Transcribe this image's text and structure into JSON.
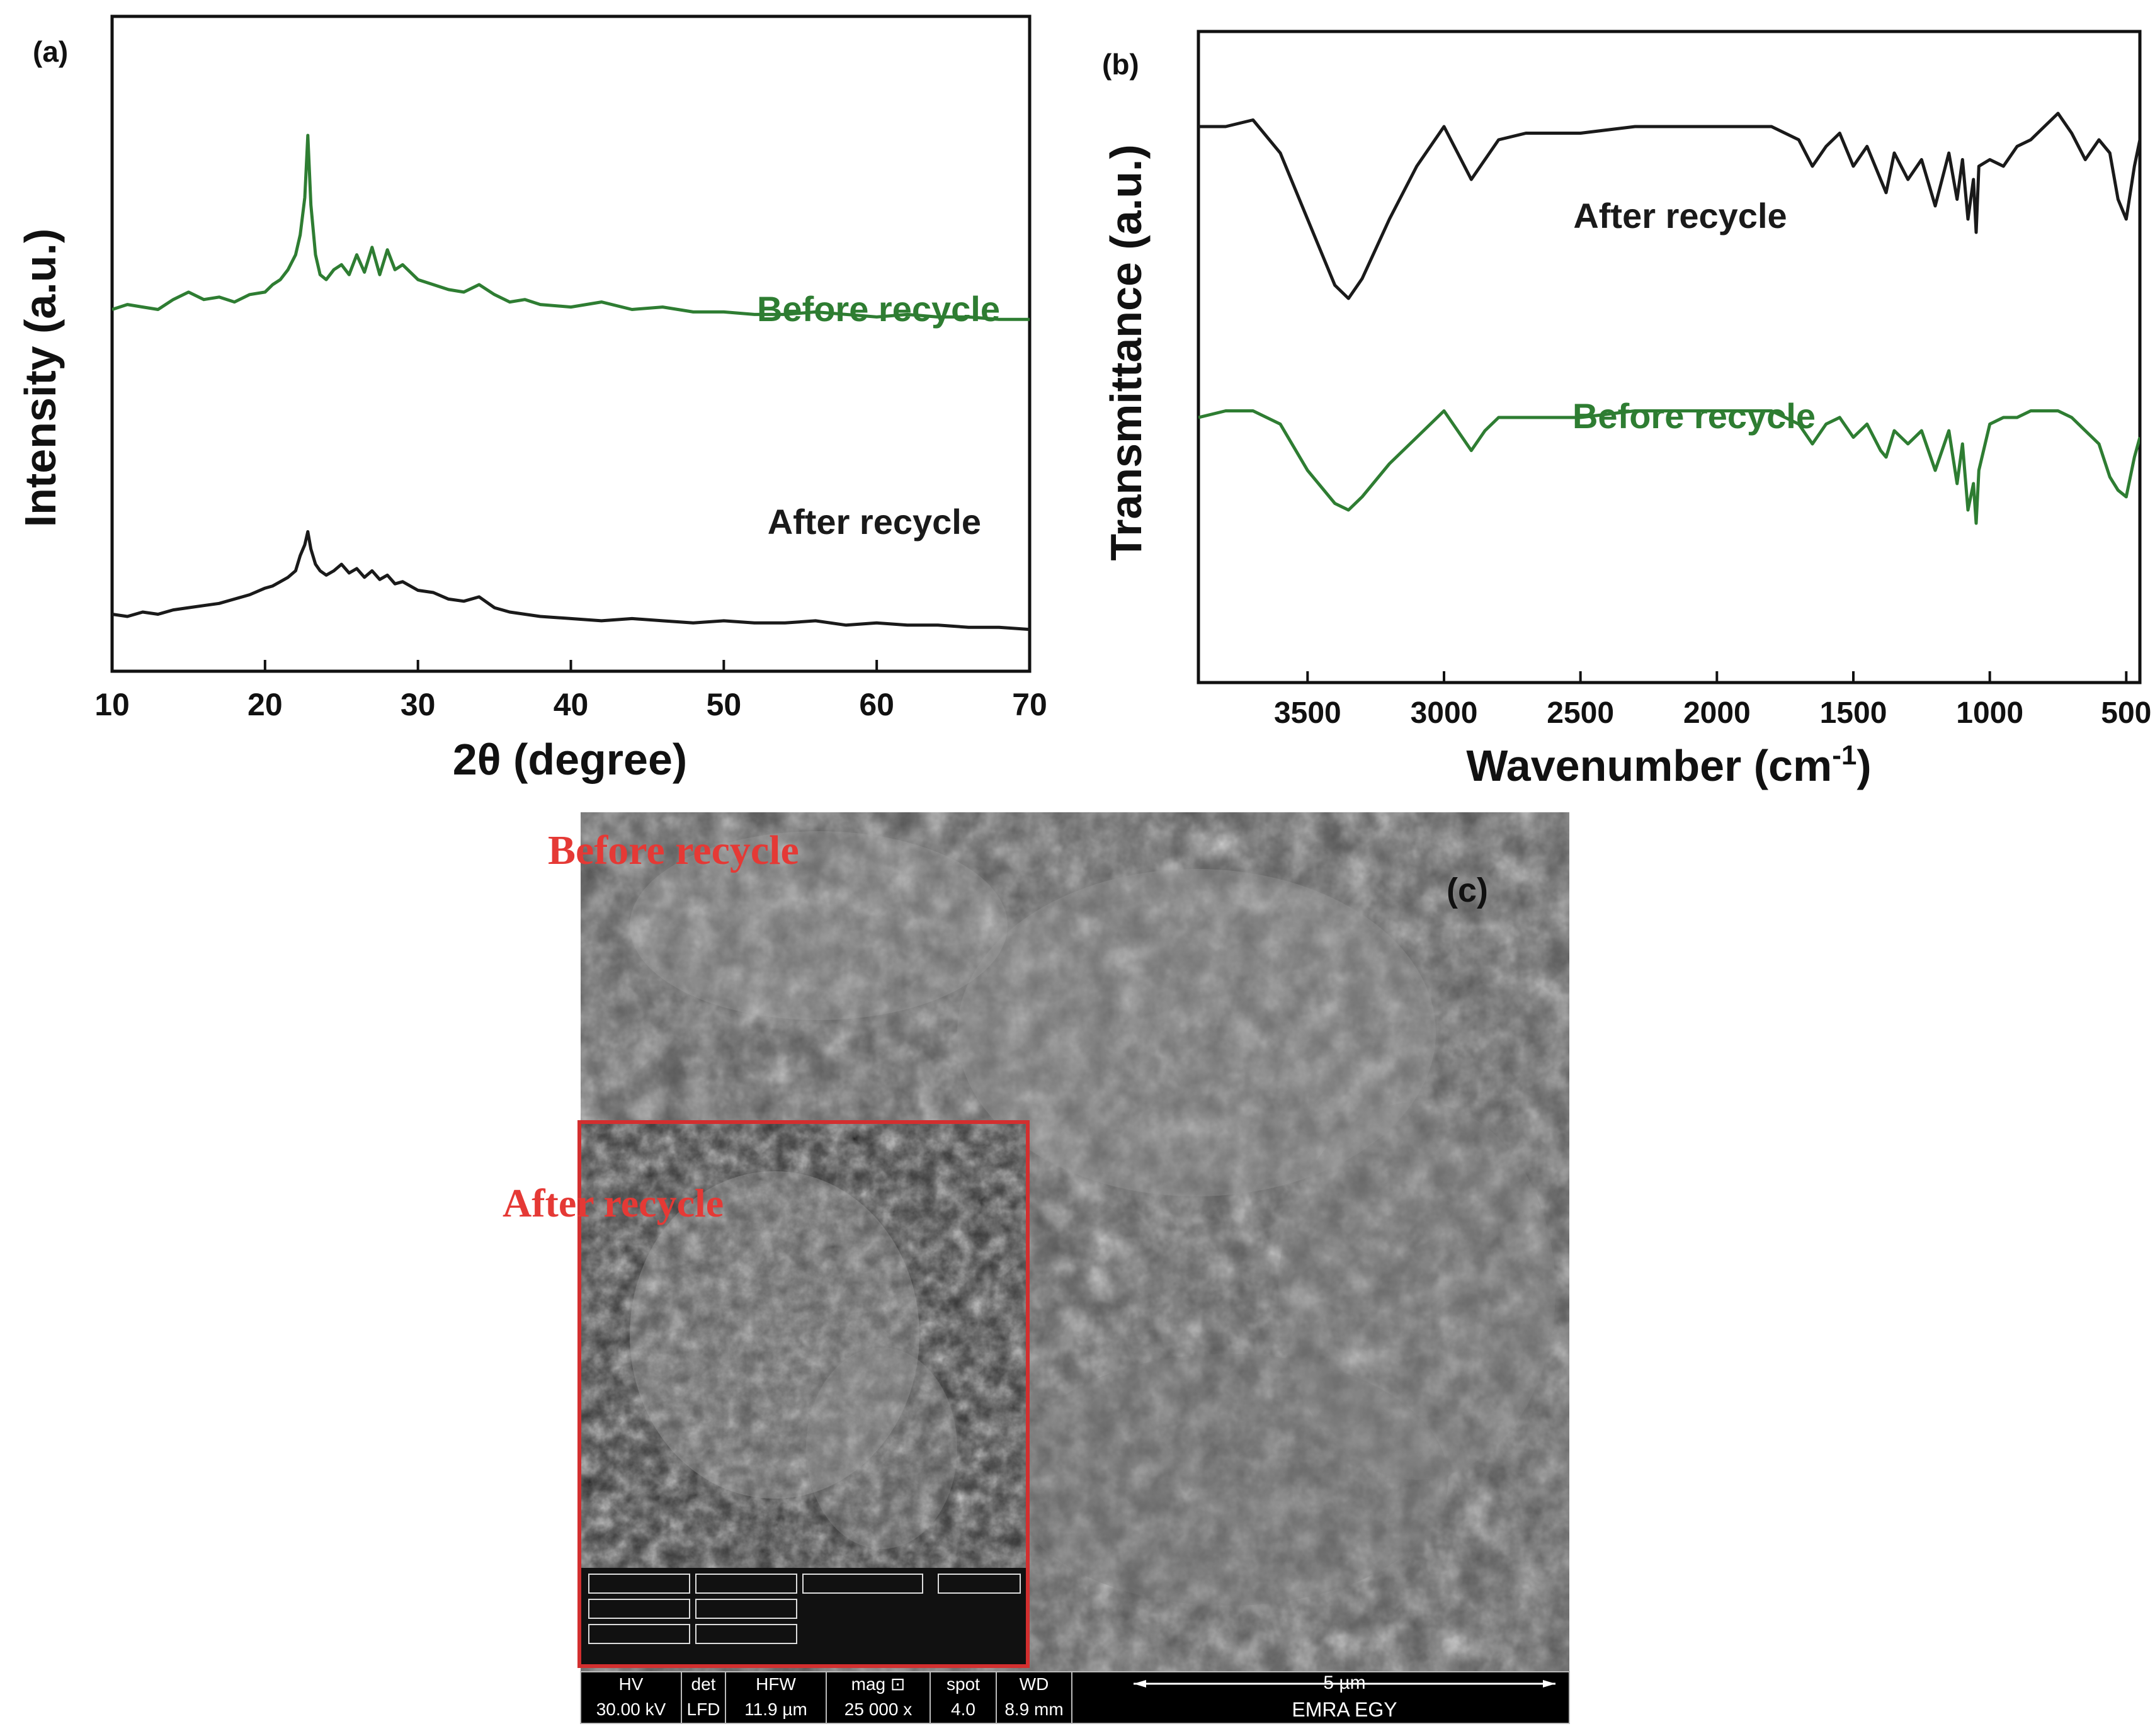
{
  "chart_data": [
    {
      "type": "line",
      "panel_label": "(a)",
      "xlabel": "2θ (degree)",
      "ylabel": "Intensity (a.u.)",
      "xlim": [
        10,
        70
      ],
      "xticks": [
        10,
        20,
        30,
        40,
        50,
        60,
        70
      ],
      "y_ticks_shown": false,
      "series": [
        {
          "name": "Before recycle",
          "color": "#2e7d32",
          "x": [
            10,
            11,
            12,
            13,
            14,
            15,
            16,
            17,
            18,
            19,
            20,
            20.5,
            21,
            21.5,
            22,
            22.3,
            22.6,
            22.8,
            23,
            23.3,
            23.6,
            24,
            24.5,
            25,
            25.5,
            26,
            26.5,
            27,
            27.5,
            28,
            28.5,
            29,
            30,
            31,
            32,
            33,
            34,
            35,
            36,
            37,
            38,
            40,
            42,
            44,
            46,
            48,
            50,
            52,
            54,
            56,
            58,
            60,
            62,
            64,
            66,
            68,
            70
          ],
          "y": [
            0.3,
            0.32,
            0.31,
            0.3,
            0.34,
            0.37,
            0.34,
            0.35,
            0.33,
            0.36,
            0.37,
            0.4,
            0.42,
            0.46,
            0.52,
            0.6,
            0.75,
            1.0,
            0.72,
            0.52,
            0.44,
            0.42,
            0.46,
            0.48,
            0.44,
            0.52,
            0.45,
            0.55,
            0.44,
            0.54,
            0.46,
            0.48,
            0.42,
            0.4,
            0.38,
            0.37,
            0.4,
            0.36,
            0.33,
            0.34,
            0.32,
            0.31,
            0.33,
            0.3,
            0.31,
            0.29,
            0.29,
            0.28,
            0.28,
            0.29,
            0.28,
            0.27,
            0.28,
            0.27,
            0.27,
            0.26,
            0.26
          ]
        },
        {
          "name": "After recycle",
          "color": "#1a1a1a",
          "x": [
            10,
            11,
            12,
            13,
            14,
            15,
            16,
            17,
            18,
            19,
            20,
            20.5,
            21,
            21.5,
            22,
            22.3,
            22.6,
            22.8,
            23,
            23.3,
            23.6,
            24,
            24.5,
            25,
            25.5,
            26,
            26.5,
            27,
            27.5,
            28,
            28.5,
            29,
            30,
            31,
            32,
            33,
            34,
            35,
            36,
            37,
            38,
            40,
            42,
            44,
            46,
            48,
            50,
            52,
            54,
            56,
            58,
            60,
            62,
            64,
            66,
            68,
            70
          ],
          "y": [
            0.1,
            0.09,
            0.11,
            0.1,
            0.12,
            0.13,
            0.14,
            0.15,
            0.17,
            0.19,
            0.22,
            0.23,
            0.25,
            0.27,
            0.3,
            0.37,
            0.42,
            0.48,
            0.4,
            0.33,
            0.3,
            0.28,
            0.3,
            0.33,
            0.29,
            0.31,
            0.27,
            0.3,
            0.26,
            0.28,
            0.24,
            0.25,
            0.21,
            0.2,
            0.17,
            0.16,
            0.18,
            0.13,
            0.11,
            0.1,
            0.09,
            0.08,
            0.07,
            0.08,
            0.07,
            0.06,
            0.07,
            0.06,
            0.06,
            0.07,
            0.05,
            0.06,
            0.05,
            0.05,
            0.04,
            0.04,
            0.03
          ]
        }
      ],
      "annotations": [
        "Before recycle",
        "After recycle"
      ]
    },
    {
      "type": "line",
      "panel_label": "(b)",
      "xlabel": "Wavenumber (cm",
      "xlabel_superscript": "-1",
      "xlabel_suffix": ")",
      "ylabel": "Transmittance (a.u.)",
      "xlim": [
        3900,
        450
      ],
      "x_reversed": true,
      "xticks": [
        3500,
        3000,
        2500,
        2000,
        1500,
        1000,
        500
      ],
      "y_ticks_shown": false,
      "series": [
        {
          "name": "After recycle",
          "color": "#1a1a1a",
          "x": [
            3900,
            3800,
            3700,
            3600,
            3500,
            3400,
            3350,
            3300,
            3200,
            3100,
            3000,
            2950,
            2900,
            2850,
            2800,
            2700,
            2500,
            2300,
            2100,
            1900,
            1800,
            1700,
            1650,
            1600,
            1550,
            1500,
            1450,
            1400,
            1380,
            1350,
            1300,
            1250,
            1200,
            1150,
            1120,
            1100,
            1080,
            1060,
            1050,
            1040,
            1000,
            950,
            900,
            850,
            800,
            750,
            700,
            650,
            600,
            560,
            530,
            500,
            470,
            450
          ],
          "y": [
            0.78,
            0.78,
            0.79,
            0.74,
            0.64,
            0.54,
            0.52,
            0.55,
            0.64,
            0.72,
            0.78,
            0.74,
            0.7,
            0.73,
            0.76,
            0.77,
            0.77,
            0.78,
            0.78,
            0.78,
            0.78,
            0.76,
            0.72,
            0.75,
            0.77,
            0.72,
            0.75,
            0.7,
            0.68,
            0.74,
            0.7,
            0.73,
            0.66,
            0.74,
            0.67,
            0.73,
            0.64,
            0.7,
            0.62,
            0.72,
            0.73,
            0.72,
            0.75,
            0.76,
            0.78,
            0.8,
            0.77,
            0.73,
            0.76,
            0.74,
            0.67,
            0.64,
            0.72,
            0.76
          ]
        },
        {
          "name": "Before recycle",
          "color": "#2e7d32",
          "x": [
            3900,
            3800,
            3700,
            3600,
            3500,
            3400,
            3350,
            3300,
            3200,
            3100,
            3000,
            2950,
            2900,
            2850,
            2800,
            2700,
            2500,
            2300,
            2100,
            1900,
            1800,
            1700,
            1650,
            1600,
            1550,
            1500,
            1450,
            1400,
            1380,
            1350,
            1300,
            1250,
            1200,
            1150,
            1120,
            1100,
            1080,
            1060,
            1050,
            1040,
            1000,
            950,
            900,
            850,
            800,
            750,
            700,
            650,
            600,
            560,
            530,
            500,
            470,
            450
          ],
          "y": [
            0.34,
            0.35,
            0.35,
            0.33,
            0.26,
            0.21,
            0.2,
            0.22,
            0.27,
            0.31,
            0.35,
            0.32,
            0.29,
            0.32,
            0.34,
            0.34,
            0.34,
            0.35,
            0.35,
            0.35,
            0.35,
            0.33,
            0.3,
            0.33,
            0.34,
            0.31,
            0.33,
            0.29,
            0.28,
            0.32,
            0.3,
            0.32,
            0.26,
            0.32,
            0.24,
            0.3,
            0.2,
            0.24,
            0.18,
            0.26,
            0.33,
            0.34,
            0.34,
            0.35,
            0.35,
            0.35,
            0.34,
            0.32,
            0.3,
            0.25,
            0.23,
            0.22,
            0.28,
            0.31
          ]
        }
      ],
      "annotations": [
        "After recycle",
        "Before recycle"
      ]
    }
  ],
  "sem_panel": {
    "panel_label": "(c)",
    "main_caption": "Before recycle",
    "inset_caption": "After recycle",
    "colors": {
      "caption": "#e53935",
      "inset_border": "#d32f2f"
    },
    "databar": {
      "headers": [
        "HV",
        "det",
        "HFW",
        "mag ⊡",
        "spot",
        "WD"
      ],
      "values": [
        "30.00 kV",
        "LFD",
        "11.9 µm",
        "25 000 x",
        "4.0",
        "8.9 mm"
      ],
      "scale_label": "5 µm",
      "lab_name": "EMRA EGY"
    }
  }
}
